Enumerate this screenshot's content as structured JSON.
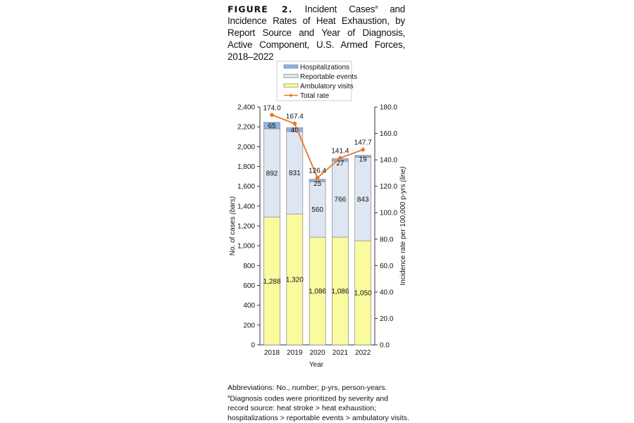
{
  "title": {
    "label": "FIGURE 2.",
    "text": "Incident Cases",
    "superscript": "a",
    "text_rest": " and Incidence Rates of Heat Exhaustion, by Report Source and Year of Diagnosis, Active Component, U.S. Armed Forces, 2018–2022"
  },
  "footnotes": {
    "abbreviations": "Abbreviations: No., number; p-yrs, person-years.",
    "marker": "a",
    "note": "Diagnosis codes were prioritized by severity and record source: heat stroke > heat exhaustion; hospitalizations > reportable events > ambulatory visits."
  },
  "chart_data": {
    "type": "bar",
    "stacked": true,
    "categories": [
      "2018",
      "2019",
      "2020",
      "2021",
      "2022"
    ],
    "series": [
      {
        "name": "Ambulatory visits",
        "values": [
          1288,
          1320,
          1086,
          1086,
          1050
        ],
        "labels": [
          "1,288",
          "1,320",
          "1,086",
          "1,086",
          "1,050"
        ],
        "color": "#fafa9e"
      },
      {
        "name": "Reportable events",
        "values": [
          892,
          831,
          560,
          766,
          843
        ],
        "labels": [
          "892",
          "831",
          "560",
          "766",
          "843"
        ],
        "color": "#dde6f1"
      },
      {
        "name": "Hospitalizations",
        "values": [
          65,
          40,
          25,
          27,
          19
        ],
        "labels": [
          "65",
          "40",
          "25",
          "27",
          "19"
        ],
        "color": "#8eb4e3"
      }
    ],
    "line": {
      "name": "Total rate",
      "type": "line",
      "axis": "right",
      "values": [
        174.0,
        167.4,
        126.4,
        141.4,
        147.7
      ],
      "labels": [
        "174.0",
        "167.4",
        "126.4",
        "141.4",
        "147.7"
      ],
      "color": "#e87722"
    },
    "legend_order": [
      "Hospitalizations",
      "Reportable events",
      "Ambulatory visits",
      "Total rate"
    ],
    "legend_position": "top",
    "xlabel": "Year",
    "ylabel": "No. of cases",
    "ylabel_italic": "(bars)",
    "y2label": "Incidence rate per 100,000 p-yrs",
    "y2label_italic": "(line)",
    "ylim": [
      0,
      2400
    ],
    "yticks": [
      "0",
      "200",
      "400",
      "600",
      "800",
      "1,000",
      "1,200",
      "1,400",
      "1,600",
      "1,800",
      "2,000",
      "2,200",
      "2,400"
    ],
    "y2lim": [
      0,
      180
    ],
    "y2ticks": [
      "0.0",
      "20.0",
      "40.0",
      "60.0",
      "80.0",
      "100.0",
      "120.0",
      "140.0",
      "160.0",
      "180.0"
    ],
    "grid": false
  }
}
